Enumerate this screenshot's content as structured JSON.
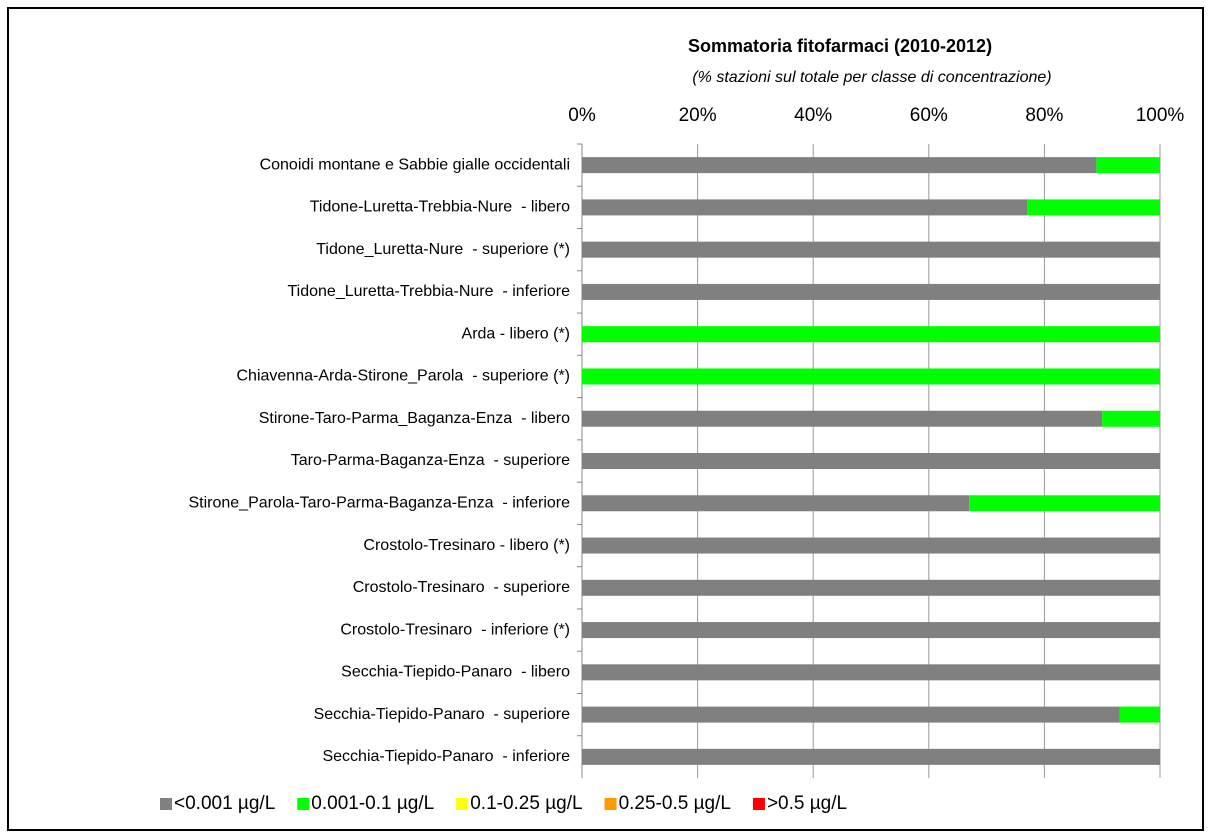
{
  "chart_data": {
    "type": "stacked_bar_horizontal",
    "title": "Sommatoria fitofarmaci (2010-2012)",
    "subtitle": "(% stazioni sul totale per classe di concentrazione)",
    "categories": [
      "Conoidi montane e Sabbie gialle occidentali",
      "Tidone-Luretta-Trebbia-Nure  - libero",
      "Tidone_Luretta-Nure  - superiore (*)",
      "Tidone_Luretta-Trebbia-Nure  - inferiore",
      "Arda - libero (*)",
      "Chiavenna-Arda-Stirone_Parola  - superiore (*)",
      "Stirone-Taro-Parma_Baganza-Enza  - libero",
      "Taro-Parma-Baganza-Enza  - superiore",
      "Stirone_Parola-Taro-Parma-Baganza-Enza  - inferiore",
      "Crostolo-Tresinaro - libero (*)",
      "Crostolo-Tresinaro  - superiore",
      "Crostolo-Tresinaro  - inferiore (*)",
      "Secchia-Tiepido-Panaro  - libero",
      "Secchia-Tiepido-Panaro  - superiore",
      "Secchia-Tiepido-Panaro  - inferiore"
    ],
    "series": [
      {
        "name": "<0.001 µg/L",
        "color": "#808080",
        "values": [
          89,
          77,
          100,
          100,
          0,
          0,
          90,
          100,
          67,
          100,
          100,
          100,
          100,
          93,
          100
        ]
      },
      {
        "name": "0.001-0.1 µg/L",
        "color": "#00ff00",
        "values": [
          11,
          23,
          0,
          0,
          100,
          100,
          10,
          0,
          33,
          0,
          0,
          0,
          0,
          7,
          0
        ]
      },
      {
        "name": "0.1-0.25 µg/L",
        "color": "#ffff00",
        "values": [
          0,
          0,
          0,
          0,
          0,
          0,
          0,
          0,
          0,
          0,
          0,
          0,
          0,
          0,
          0
        ]
      },
      {
        "name": "0.25-0.5 µg/L",
        "color": "#ff9900",
        "values": [
          0,
          0,
          0,
          0,
          0,
          0,
          0,
          0,
          0,
          0,
          0,
          0,
          0,
          0,
          0
        ]
      },
      {
        "name": ">0.5 µg/L",
        "color": "#ff0000",
        "values": [
          0,
          0,
          0,
          0,
          0,
          0,
          0,
          0,
          0,
          0,
          0,
          0,
          0,
          0,
          0
        ]
      }
    ],
    "xlim": [
      0,
      100
    ],
    "xticks": [
      {
        "value": 0,
        "label": "0%"
      },
      {
        "value": 20,
        "label": "20%"
      },
      {
        "value": 40,
        "label": "40%"
      },
      {
        "value": 60,
        "label": "60%"
      },
      {
        "value": 80,
        "label": "80%"
      },
      {
        "value": 100,
        "label": "100%"
      }
    ],
    "grid": true,
    "legend": "bottom"
  }
}
